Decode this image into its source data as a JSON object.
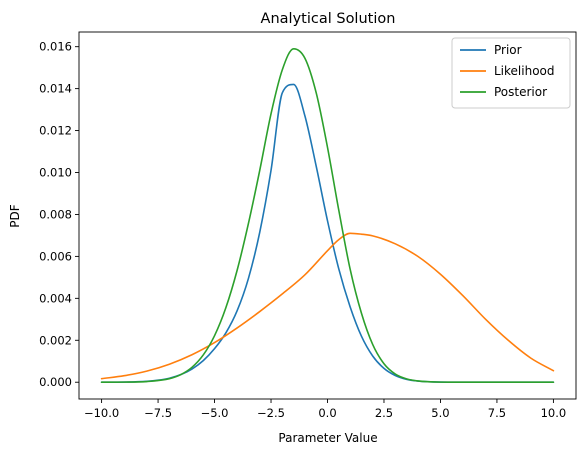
{
  "chart_data": {
    "type": "line",
    "title": "Analytical Solution",
    "xlabel": "Parameter Value",
    "ylabel": "PDF",
    "xlim": [
      -11.0,
      11.0
    ],
    "ylim": [
      -0.0008,
      0.0167
    ],
    "xticks": [
      -10.0,
      -7.5,
      -5.0,
      -2.5,
      0.0,
      2.5,
      5.0,
      7.5,
      10.0
    ],
    "xtick_labels": [
      "−10.0",
      "−7.5",
      "−5.0",
      "−2.5",
      "0.0",
      "2.5",
      "5.0",
      "7.5",
      "10.0"
    ],
    "yticks": [
      0.0,
      0.002,
      0.004,
      0.006,
      0.008,
      0.01,
      0.012,
      0.014,
      0.016
    ],
    "ytick_labels": [
      "0.000",
      "0.002",
      "0.004",
      "0.006",
      "0.008",
      "0.010",
      "0.012",
      "0.014",
      "0.016"
    ],
    "grid": false,
    "legend_position": "top-right",
    "series": [
      {
        "name": "Prior",
        "color": "#1f77b4",
        "x": [
          -10,
          -9,
          -8,
          -7.5,
          -7,
          -6.5,
          -6,
          -5.5,
          -5,
          -4.5,
          -4,
          -3.5,
          -3,
          -2.5,
          -2,
          -1.5,
          -1,
          -0.5,
          0,
          0.5,
          1,
          1.5,
          2,
          2.5,
          3,
          3.5,
          4,
          5,
          6,
          7,
          8,
          9,
          10
        ],
        "y": [
          1e-06,
          7e-06,
          4.4e-05,
          9.5e-05,
          0.00019,
          0.00036,
          0.00063,
          0.00103,
          0.0016,
          0.00235,
          0.00341,
          0.00495,
          0.00715,
          0.0101,
          0.0138,
          0.0142,
          0.0127,
          0.0103,
          0.0077,
          0.0054,
          0.0036,
          0.0022,
          0.00125,
          0.00066,
          0.00032,
          0.00014,
          5.7e-05,
          7.4e-06,
          7e-07,
          0.0,
          0.0,
          0.0,
          0.0
        ]
      },
      {
        "name": "Likelihood",
        "color": "#ff7f0e",
        "x": [
          -10,
          -9,
          -8,
          -7,
          -6,
          -5,
          -4,
          -3,
          -2,
          -1,
          0,
          0.5,
          1,
          1.5,
          2,
          3,
          4,
          5,
          6,
          7,
          8,
          9,
          10
        ],
        "y": [
          0.00017,
          0.00031,
          0.00053,
          0.00086,
          0.00131,
          0.00189,
          0.00259,
          0.00337,
          0.00421,
          0.00512,
          0.00627,
          0.0068,
          0.0071,
          0.00706,
          0.00698,
          0.0066,
          0.006,
          0.00515,
          0.00412,
          0.003,
          0.002,
          0.00115,
          0.00055
        ]
      },
      {
        "name": "Posterior",
        "color": "#2ca02c",
        "x": [
          -10,
          -9,
          -8,
          -7,
          -6.5,
          -6,
          -5.5,
          -5,
          -4.5,
          -4,
          -3.5,
          -3,
          -2.5,
          -2,
          -1.5,
          -1,
          -0.5,
          0,
          0.5,
          1,
          1.5,
          2,
          2.5,
          3,
          3.5,
          4,
          5,
          6,
          7,
          8,
          9,
          10
        ],
        "y": [
          1e-06,
          5e-06,
          3.2e-05,
          0.00017,
          0.00036,
          0.00071,
          0.0013,
          0.00222,
          0.00355,
          0.00534,
          0.00757,
          0.0101,
          0.0128,
          0.0149,
          0.0159,
          0.01545,
          0.0138,
          0.0112,
          0.0082,
          0.0054,
          0.0033,
          0.0018,
          0.00088,
          0.00039,
          0.00016,
          6e-05,
          5e-06,
          2e-07,
          0.0,
          0.0,
          0.0,
          0.0
        ]
      }
    ]
  }
}
